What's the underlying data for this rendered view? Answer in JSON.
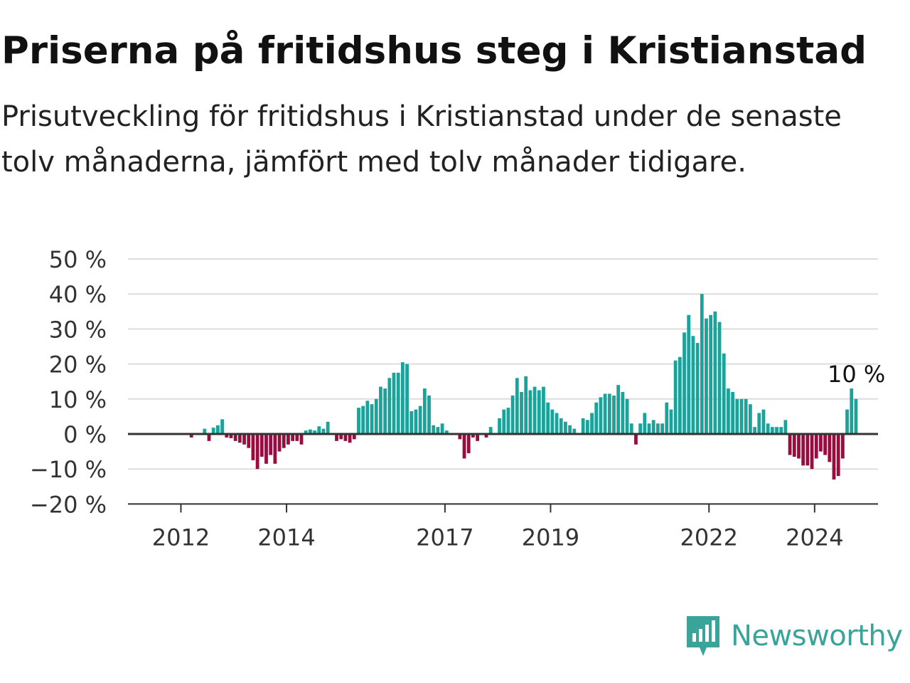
{
  "title": "Priserna på fritidshus steg i Kristianstad",
  "subtitle": "Prisutveckling för fritidshus i Kristianstad under de senaste tolv månaderna, jämfört med tolv månader tidigare.",
  "brand": {
    "name": "Newsworthy",
    "color": "#3aa39a",
    "icon": "newsworthy-logo-icon"
  },
  "colors": {
    "positive": "#1aa39a",
    "negative": "#9b0c3e",
    "grid": "#dddddd",
    "axis": "#333333"
  },
  "chart_data": {
    "type": "bar",
    "title": "Priserna på fritidshus steg i Kristianstad",
    "xlabel": "",
    "ylabel": "",
    "ylim": [
      -20,
      50
    ],
    "y_ticks": [
      50,
      40,
      30,
      20,
      10,
      0,
      -10,
      -20
    ],
    "y_tick_labels": [
      "50 %",
      "40 %",
      "30 %",
      "20 %",
      "10 %",
      "0 %",
      "−10 %",
      "−20 %"
    ],
    "x_tick_labels": [
      "2012",
      "2014",
      "2017",
      "2019",
      "2022",
      "2024"
    ],
    "x_tick_months": [
      12,
      36,
      72,
      96,
      132,
      156
    ],
    "grid": true,
    "start": "2011-06",
    "end": "2025-01",
    "frequency": "monthly",
    "annotation": {
      "text": "10 %",
      "month": "2025-01",
      "value": 10
    },
    "values": [
      null,
      0,
      0,
      0,
      0,
      0,
      0,
      0,
      0,
      0,
      0,
      0,
      0,
      0,
      -1,
      0,
      0,
      1.5,
      -2,
      1.8,
      2.5,
      4.2,
      -1,
      -1.2,
      -2,
      -2.5,
      -3,
      -4,
      -7.5,
      -10,
      -6.5,
      -8.5,
      -6,
      -8.5,
      -5,
      -4,
      -3,
      -2,
      -2,
      -3,
      1,
      1.3,
      1,
      2.2,
      1.5,
      3.5,
      0,
      -2,
      -1.5,
      -2,
      -2.5,
      -1.5,
      7.5,
      8,
      9.5,
      8.5,
      10,
      13.5,
      13,
      16,
      17.5,
      17.5,
      20.5,
      20,
      6.5,
      7,
      8,
      13,
      11,
      2.5,
      2,
      3,
      1,
      0,
      0,
      -1.5,
      -7,
      -5.5,
      -1,
      -2,
      0,
      -1,
      2,
      0,
      4.5,
      7,
      7.5,
      11,
      16,
      12,
      16.5,
      12.5,
      13.5,
      12.5,
      13.5,
      9,
      7,
      6,
      4.5,
      3.5,
      2.5,
      1.5,
      0,
      4.5,
      4,
      6,
      9,
      10.5,
      11.5,
      11.5,
      11,
      14,
      12,
      10,
      3,
      -3,
      3,
      6,
      3,
      4,
      3,
      3,
      9,
      7,
      21,
      22,
      29,
      34,
      28,
      26,
      40,
      33,
      34,
      35,
      32,
      23,
      13,
      12,
      10,
      10,
      10,
      8.5,
      2,
      6,
      7,
      3,
      2,
      2,
      2,
      4,
      -6,
      -6.5,
      -7,
      -9,
      -9,
      -10,
      -7,
      -5,
      -6,
      -8,
      -13,
      -12,
      -7,
      7,
      13,
      10
    ]
  }
}
